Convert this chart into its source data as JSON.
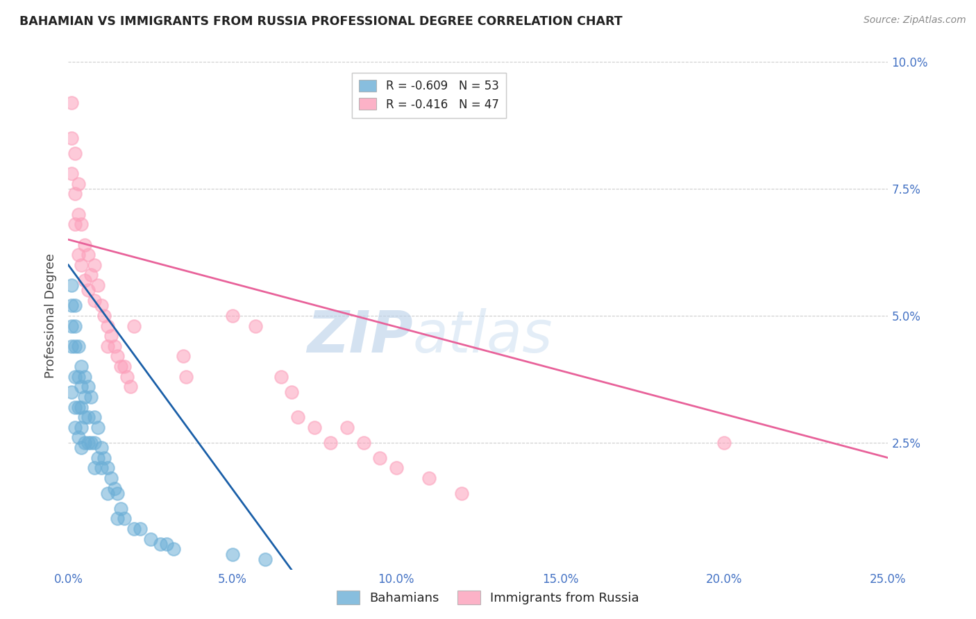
{
  "title": "BAHAMIAN VS IMMIGRANTS FROM RUSSIA PROFESSIONAL DEGREE CORRELATION CHART",
  "source": "Source: ZipAtlas.com",
  "ylabel": "Professional Degree",
  "xlim": [
    0.0,
    0.25
  ],
  "ylim": [
    0.0,
    0.1
  ],
  "xtick_labels": [
    "0.0%",
    "5.0%",
    "10.0%",
    "15.0%",
    "20.0%",
    "25.0%"
  ],
  "xtick_vals": [
    0.0,
    0.05,
    0.1,
    0.15,
    0.2,
    0.25
  ],
  "ytick_labels": [
    "2.5%",
    "5.0%",
    "7.5%",
    "10.0%"
  ],
  "ytick_vals": [
    0.025,
    0.05,
    0.075,
    0.1
  ],
  "legend_label1": "R = -0.609   N = 53",
  "legend_label2": "R = -0.416   N = 47",
  "legend_label_bottom1": "Bahamians",
  "legend_label_bottom2": "Immigrants from Russia",
  "blue_color": "#6baed6",
  "pink_color": "#fc9fba",
  "blue_line_color": "#1a5fa8",
  "pink_line_color": "#e8629a",
  "watermark_zip": "ZIP",
  "watermark_atlas": "atlas",
  "blue_x": [
    0.001,
    0.001,
    0.001,
    0.001,
    0.001,
    0.002,
    0.002,
    0.002,
    0.002,
    0.002,
    0.002,
    0.003,
    0.003,
    0.003,
    0.003,
    0.004,
    0.004,
    0.004,
    0.004,
    0.004,
    0.005,
    0.005,
    0.005,
    0.005,
    0.006,
    0.006,
    0.006,
    0.007,
    0.007,
    0.008,
    0.008,
    0.008,
    0.009,
    0.009,
    0.01,
    0.01,
    0.011,
    0.012,
    0.012,
    0.013,
    0.014,
    0.015,
    0.015,
    0.016,
    0.017,
    0.02,
    0.022,
    0.025,
    0.028,
    0.03,
    0.032,
    0.05,
    0.06
  ],
  "blue_y": [
    0.056,
    0.052,
    0.048,
    0.044,
    0.035,
    0.052,
    0.048,
    0.044,
    0.038,
    0.032,
    0.028,
    0.044,
    0.038,
    0.032,
    0.026,
    0.04,
    0.036,
    0.032,
    0.028,
    0.024,
    0.038,
    0.034,
    0.03,
    0.025,
    0.036,
    0.03,
    0.025,
    0.034,
    0.025,
    0.03,
    0.025,
    0.02,
    0.028,
    0.022,
    0.024,
    0.02,
    0.022,
    0.02,
    0.015,
    0.018,
    0.016,
    0.015,
    0.01,
    0.012,
    0.01,
    0.008,
    0.008,
    0.006,
    0.005,
    0.005,
    0.004,
    0.003,
    0.002
  ],
  "pink_x": [
    0.001,
    0.001,
    0.001,
    0.002,
    0.002,
    0.002,
    0.003,
    0.003,
    0.003,
    0.004,
    0.004,
    0.005,
    0.005,
    0.006,
    0.006,
    0.007,
    0.008,
    0.008,
    0.009,
    0.01,
    0.011,
    0.012,
    0.012,
    0.013,
    0.014,
    0.015,
    0.016,
    0.017,
    0.018,
    0.019,
    0.02,
    0.035,
    0.036,
    0.05,
    0.057,
    0.065,
    0.068,
    0.07,
    0.075,
    0.08,
    0.085,
    0.09,
    0.095,
    0.1,
    0.11,
    0.12,
    0.2
  ],
  "pink_y": [
    0.092,
    0.085,
    0.078,
    0.082,
    0.074,
    0.068,
    0.076,
    0.07,
    0.062,
    0.068,
    0.06,
    0.064,
    0.057,
    0.062,
    0.055,
    0.058,
    0.06,
    0.053,
    0.056,
    0.052,
    0.05,
    0.048,
    0.044,
    0.046,
    0.044,
    0.042,
    0.04,
    0.04,
    0.038,
    0.036,
    0.048,
    0.042,
    0.038,
    0.05,
    0.048,
    0.038,
    0.035,
    0.03,
    0.028,
    0.025,
    0.028,
    0.025,
    0.022,
    0.02,
    0.018,
    0.015,
    0.025
  ],
  "blue_line_x": [
    0.0,
    0.068
  ],
  "blue_line_y": [
    0.06,
    0.0
  ],
  "pink_line_x": [
    0.0,
    0.25
  ],
  "pink_line_y": [
    0.065,
    0.022
  ]
}
